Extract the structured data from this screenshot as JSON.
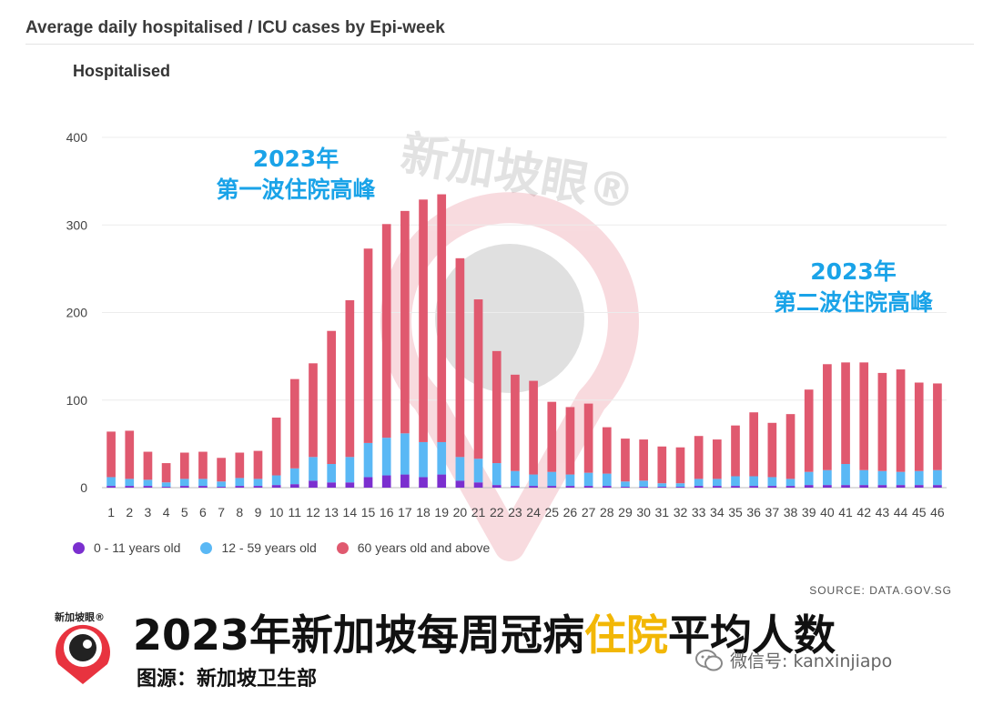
{
  "header": {
    "title": "Average daily hospitalised / ICU cases by Epi-week"
  },
  "panel": {
    "title": "Hospitalised"
  },
  "annotations": [
    {
      "line1": "2023年",
      "line2": "第一波住院高峰"
    },
    {
      "line1": "2023年",
      "line2": "第二波住院高峰"
    }
  ],
  "legend": [
    {
      "label": "0 - 11 years old",
      "color": "#7b2fcf"
    },
    {
      "label": "12 - 59 years old",
      "color": "#5ab8f5"
    },
    {
      "label": "60 years old and above",
      "color": "#e0596f"
    }
  ],
  "source": "SOURCE: DATA.GOV.SG",
  "banner": {
    "title_before": "2023年新加坡每周冠病",
    "title_highlight": "住院",
    "title_after": "平均人数",
    "subtitle": "图源：新加坡卫生部",
    "wechat": "微信号: kanxinjiapo",
    "logo_text": "新加坡眼®"
  },
  "watermark": "新加坡眼®",
  "colors": {
    "age_0_11": "#7b2fcf",
    "age_12_59": "#5ab8f5",
    "age_60_plus": "#e0596f",
    "annotation": "#1aa3e8",
    "highlight": "#f2b705"
  },
  "chart_data": {
    "type": "bar",
    "stacked": true,
    "title": "Average daily hospitalised / ICU cases by Epi-week",
    "subtitle": "Hospitalised",
    "ylim": [
      0,
      400
    ],
    "yticks": [
      0,
      100,
      200,
      300,
      400
    ],
    "grid": true,
    "legend_position": "bottom-left",
    "categories": [
      "1",
      "2",
      "3",
      "4",
      "5",
      "6",
      "7",
      "8",
      "9",
      "10",
      "11",
      "12",
      "13",
      "14",
      "15",
      "16",
      "17",
      "18",
      "19",
      "20",
      "21",
      "22",
      "23",
      "24",
      "25",
      "26",
      "27",
      "28",
      "29",
      "30",
      "31",
      "32",
      "33",
      "34",
      "35",
      "36",
      "37",
      "38",
      "39",
      "40",
      "41",
      "42",
      "43",
      "44",
      "45",
      "46"
    ],
    "series": [
      {
        "name": "0 - 11 years old",
        "values": [
          2,
          2,
          2,
          1,
          2,
          2,
          1,
          2,
          2,
          3,
          4,
          8,
          6,
          6,
          12,
          14,
          15,
          12,
          15,
          8,
          6,
          3,
          2,
          2,
          2,
          2,
          2,
          2,
          1,
          1,
          1,
          1,
          2,
          2,
          2,
          2,
          2,
          2,
          3,
          3,
          3,
          3,
          3,
          3,
          3,
          3
        ]
      },
      {
        "name": "12 - 59 years old",
        "values": [
          10,
          8,
          7,
          5,
          8,
          8,
          6,
          9,
          8,
          11,
          18,
          27,
          21,
          29,
          39,
          43,
          47,
          40,
          37,
          27,
          27,
          25,
          17,
          13,
          16,
          13,
          15,
          14,
          6,
          7,
          4,
          4,
          8,
          8,
          11,
          11,
          10,
          8,
          15,
          17,
          24,
          17,
          16,
          15,
          16,
          17
        ]
      },
      {
        "name": "60 years old and above",
        "values": [
          52,
          55,
          32,
          22,
          30,
          31,
          27,
          29,
          32,
          66,
          102,
          107,
          152,
          179,
          222,
          244,
          254,
          277,
          283,
          227,
          182,
          128,
          110,
          107,
          80,
          77,
          79,
          53,
          49,
          47,
          42,
          41,
          49,
          45,
          58,
          73,
          62,
          74,
          94,
          121,
          116,
          123,
          112,
          117,
          101,
          99
        ]
      }
    ]
  }
}
